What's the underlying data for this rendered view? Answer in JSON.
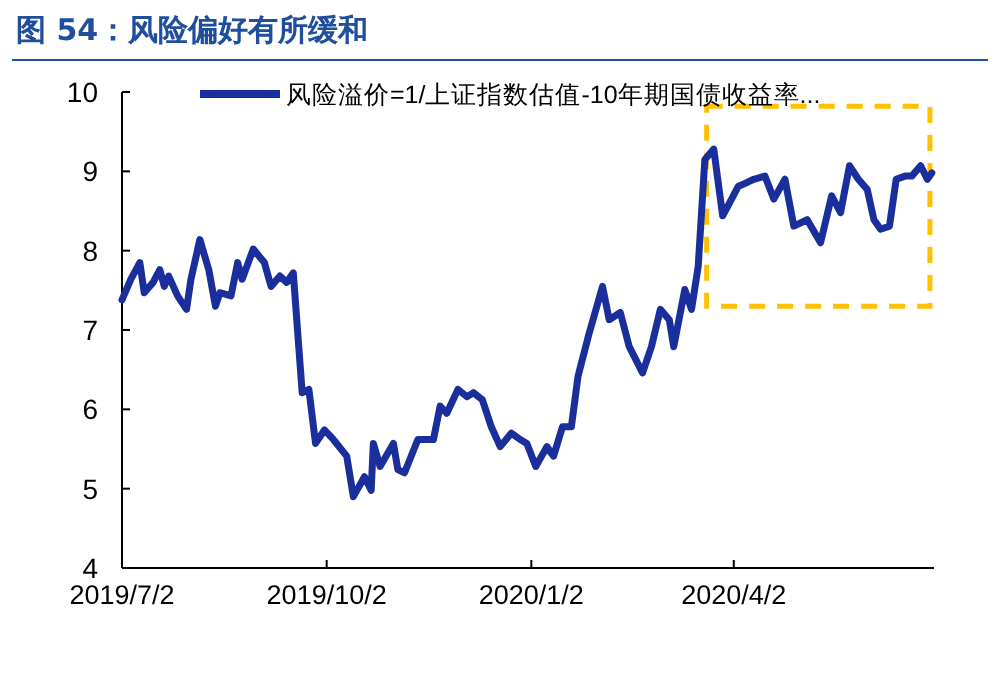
{
  "chart_data": {
    "type": "line",
    "title": "图 54：风险偏好有所缓和",
    "x": [
      "2019-07-02",
      "2019-07-06",
      "2019-07-10",
      "2019-07-12",
      "2019-07-16",
      "2019-07-19",
      "2019-07-21",
      "2019-07-23",
      "2019-07-27",
      "2019-07-31",
      "2019-08-02",
      "2019-08-06",
      "2019-08-10",
      "2019-08-13",
      "2019-08-15",
      "2019-08-20",
      "2019-08-23",
      "2019-08-25",
      "2019-08-30",
      "2019-09-04",
      "2019-09-07",
      "2019-09-11",
      "2019-09-14",
      "2019-09-17",
      "2019-09-19",
      "2019-09-21",
      "2019-09-24",
      "2019-09-27",
      "2019-10-01",
      "2019-10-05",
      "2019-10-11",
      "2019-10-14",
      "2019-10-19",
      "2019-10-22",
      "2019-10-23",
      "2019-10-26",
      "2019-11-01",
      "2019-11-03",
      "2019-11-06",
      "2019-11-12",
      "2019-11-19",
      "2019-11-22",
      "2019-11-25",
      "2019-11-30",
      "2019-12-04",
      "2019-12-07",
      "2019-12-11",
      "2019-12-15",
      "2019-12-19",
      "2019-12-24",
      "2019-12-28",
      "2019-12-31",
      "2020-01-04",
      "2020-01-09",
      "2020-01-12",
      "2020-01-16",
      "2020-01-20",
      "2020-01-23",
      "2020-01-28",
      "2020-02-03",
      "2020-02-06",
      "2020-02-11",
      "2020-02-15",
      "2020-02-21",
      "2020-02-25",
      "2020-02-29",
      "2020-03-04",
      "2020-03-06",
      "2020-03-11",
      "2020-03-14",
      "2020-03-17",
      "2020-03-20",
      "2020-03-24",
      "2020-03-28",
      "2020-04-01",
      "2020-04-04",
      "2020-04-08",
      "2020-04-11",
      "2020-04-16",
      "2020-04-20",
      "2020-04-25",
      "2020-04-29",
      "2020-05-05",
      "2020-05-11",
      "2020-05-16",
      "2020-05-20",
      "2020-05-24",
      "2020-05-28",
      "2020-06-01",
      "2020-06-04",
      "2020-06-07",
      "2020-06-11",
      "2020-06-14",
      "2020-06-18",
      "2020-06-21",
      "2020-06-25",
      "2020-06-28",
      "2020-06-30"
    ],
    "series": [
      {
        "name": "风险溢价=1/上证指数估值-10年期国债收益率...",
        "color": "#1a2f9c",
        "values": [
          7.38,
          7.64,
          7.85,
          7.47,
          7.6,
          7.76,
          7.55,
          7.68,
          7.43,
          7.26,
          7.64,
          8.14,
          7.76,
          7.3,
          7.47,
          7.43,
          7.85,
          7.64,
          8.02,
          7.85,
          7.55,
          7.68,
          7.6,
          7.72,
          6.96,
          6.21,
          6.25,
          5.57,
          5.74,
          5.62,
          5.41,
          4.9,
          5.15,
          4.98,
          5.57,
          5.28,
          5.57,
          5.24,
          5.2,
          5.62,
          5.62,
          6.04,
          5.95,
          6.25,
          6.16,
          6.21,
          6.12,
          5.78,
          5.53,
          5.7,
          5.62,
          5.57,
          5.28,
          5.53,
          5.41,
          5.78,
          5.78,
          6.42,
          6.96,
          7.55,
          7.13,
          7.22,
          6.79,
          6.46,
          6.79,
          7.26,
          7.13,
          6.79,
          7.51,
          7.26,
          7.8,
          9.15,
          9.28,
          8.44,
          8.65,
          8.81,
          8.86,
          8.9,
          8.94,
          8.65,
          8.9,
          8.31,
          8.39,
          8.1,
          8.69,
          8.48,
          9.07,
          8.9,
          8.77,
          8.39,
          8.27,
          8.31,
          8.9,
          8.94,
          8.94,
          9.07,
          8.9,
          8.98
        ]
      }
    ],
    "xlim": [
      "2019-07-02",
      "2020-07-01"
    ],
    "xticks": [
      {
        "value": "2019-07-02",
        "label": "2019/7/2"
      },
      {
        "value": "2019-10-02",
        "label": "2019/10/2"
      },
      {
        "value": "2020-01-02",
        "label": "2020/1/2"
      },
      {
        "value": "2020-04-02",
        "label": "2020/4/2"
      }
    ],
    "ylim": [
      4,
      10
    ],
    "yticks": [
      4,
      5,
      6,
      7,
      8,
      9,
      10
    ],
    "legend": "top",
    "grid": false
  }
}
